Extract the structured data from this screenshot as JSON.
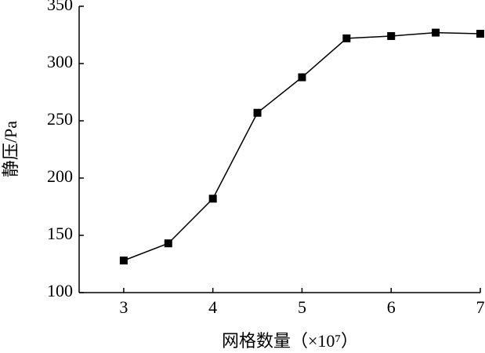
{
  "chart_data": {
    "type": "line",
    "xlabel": "网格数量（×10⁷）",
    "ylabel": "静压/Pa",
    "x": [
      3,
      3.5,
      4,
      4.5,
      5,
      5.5,
      6,
      6.5,
      7
    ],
    "series": [
      {
        "color": "#000000",
        "values": [
          128,
          143,
          182,
          257,
          288,
          322,
          324,
          327,
          326
        ]
      }
    ],
    "xlim": [
      2.5,
      7
    ],
    "xticks": [
      3,
      4,
      5,
      6,
      7
    ],
    "ylim": [
      100,
      350
    ],
    "yticks": [
      100,
      150,
      200,
      250,
      300,
      350
    ],
    "grid": false
  }
}
